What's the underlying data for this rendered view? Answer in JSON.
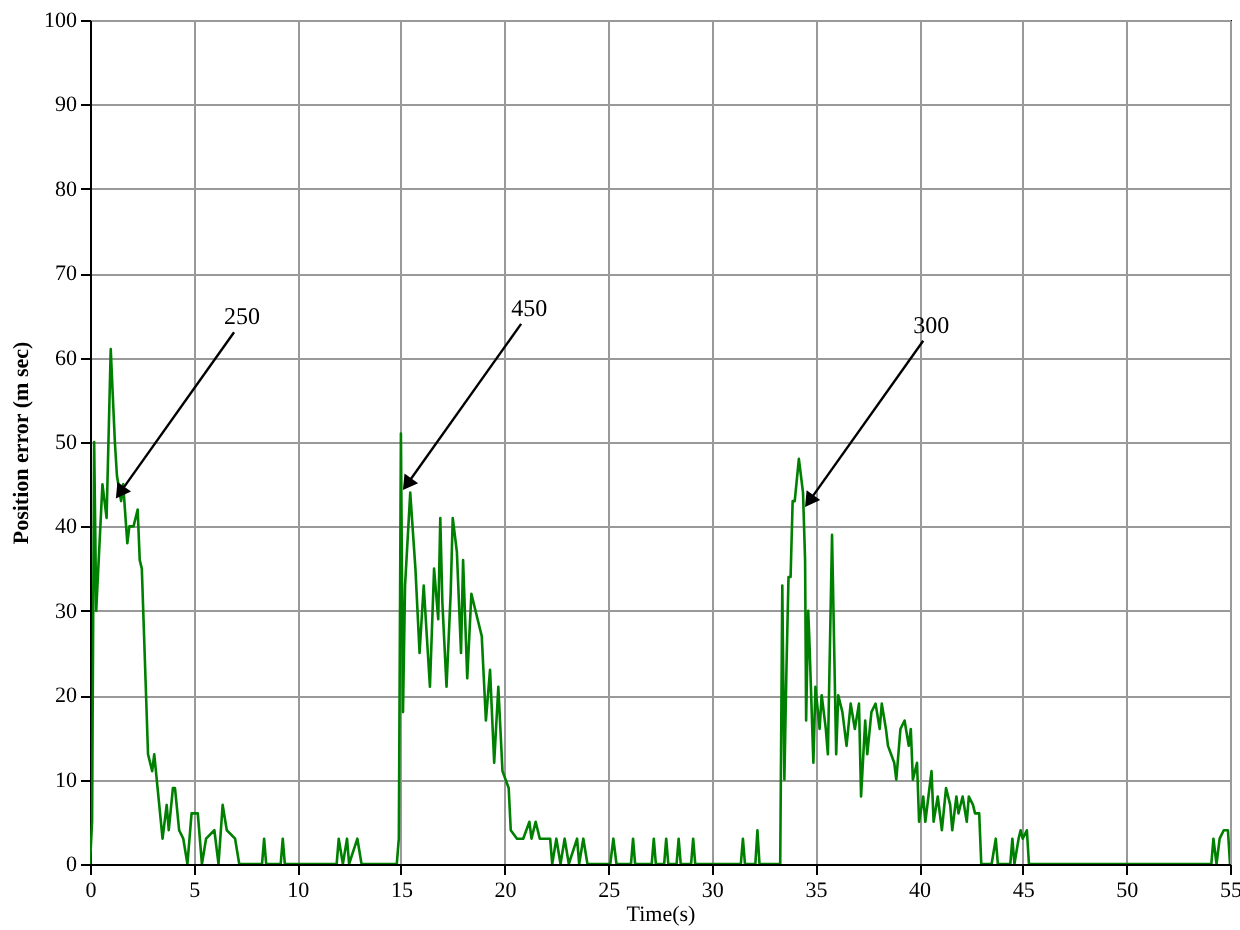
{
  "chart_data": {
    "type": "line",
    "xlabel": "Time(s)",
    "ylabel": "Position error (m sec)",
    "xlim": [
      0,
      55
    ],
    "ylim": [
      0,
      100
    ],
    "xticks": [
      0,
      5,
      10,
      15,
      20,
      25,
      30,
      35,
      40,
      45,
      50,
      55
    ],
    "yticks": [
      0,
      10,
      20,
      30,
      40,
      50,
      60,
      70,
      80,
      90,
      100
    ],
    "grid": true,
    "marker": "none",
    "line_style": "solid",
    "annotations": [
      {
        "text": "250",
        "x": 1.45,
        "y": 44
      },
      {
        "text": "450",
        "x": 15.3,
        "y": 45
      },
      {
        "text": "300",
        "x": 34.7,
        "y": 43
      }
    ],
    "series": [
      {
        "color": "#008000",
        "x": [
          0,
          0.1,
          0.2,
          0.3,
          0.5,
          0.6,
          0.8,
          1.0,
          1.2,
          1.3,
          1.5,
          1.6,
          1.8,
          1.9,
          2.1,
          2.3,
          2.4,
          2.5,
          2.8,
          3.0,
          3.1,
          3.3,
          3.5,
          3.7,
          3.8,
          4.0,
          4.1,
          4.3,
          4.5,
          4.7,
          4.9,
          5.2,
          5.4,
          5.6,
          6.0,
          6.2,
          6.4,
          6.6,
          7.0,
          7.2,
          8.3,
          8.4,
          8.5,
          9.2,
          9.3,
          9.4,
          11.9,
          12.0,
          12.2,
          12.4,
          12.5,
          12.9,
          13.1,
          14.8,
          14.9,
          15.0,
          15.1,
          15.2,
          15.45,
          15.7,
          15.9,
          16.1,
          16.4,
          16.6,
          16.8,
          16.9,
          17.0,
          17.2,
          17.4,
          17.5,
          17.7,
          17.9,
          18.0,
          18.2,
          18.4,
          18.7,
          18.9,
          19.1,
          19.3,
          19.5,
          19.7,
          19.9,
          20.2,
          20.3,
          20.6,
          20.9,
          21.2,
          21.3,
          21.5,
          21.7,
          22.2,
          22.3,
          22.5,
          22.7,
          22.9,
          23.1,
          23.5,
          23.6,
          23.8,
          24.0,
          25.1,
          25.25,
          25.4,
          26.1,
          26.2,
          26.3,
          27.1,
          27.2,
          27.3,
          27.7,
          27.8,
          27.9,
          28.3,
          28.4,
          28.5,
          29.0,
          29.1,
          29.2,
          31.4,
          31.5,
          31.6,
          32.1,
          32.2,
          32.3,
          33.3,
          33.4,
          33.5,
          33.6,
          33.7,
          33.8,
          33.9,
          34.0,
          34.2,
          34.4,
          34.5,
          34.55,
          34.65,
          34.7,
          34.9,
          35.0,
          35.2,
          35.3,
          35.5,
          35.6,
          35.8,
          36.0,
          36.1,
          36.3,
          36.5,
          36.7,
          36.9,
          37.1,
          37.2,
          37.4,
          37.5,
          37.7,
          37.9,
          38.1,
          38.2,
          38.4,
          38.5,
          38.8,
          38.9,
          39.1,
          39.3,
          39.5,
          39.6,
          39.7,
          39.9,
          40.0,
          40.2,
          40.3,
          40.45,
          40.6,
          40.7,
          40.9,
          41.1,
          41.3,
          41.5,
          41.6,
          41.8,
          41.9,
          42.1,
          42.3,
          42.4,
          42.6,
          42.7,
          42.9,
          43.0,
          43.5,
          43.7,
          43.8,
          44.4,
          44.5,
          44.6,
          44.8,
          44.9,
          45.0,
          45.2,
          45.3,
          54.1,
          54.2,
          54.35,
          54.5,
          54.7,
          54.9,
          55
        ],
        "values": [
          0,
          5,
          50,
          30,
          40,
          45,
          41,
          61,
          50,
          46,
          43,
          45,
          38,
          40,
          40,
          42,
          36,
          35,
          13,
          11,
          13,
          8,
          3,
          7,
          4,
          9,
          9,
          4,
          3,
          0,
          6,
          6,
          0,
          3,
          4,
          0,
          7,
          4,
          3,
          0,
          0,
          3,
          0,
          0,
          3,
          0,
          0,
          3,
          0,
          3,
          0,
          3,
          0,
          0,
          3,
          51,
          18,
          33,
          44,
          35,
          25,
          33,
          21,
          35,
          29,
          41,
          31,
          21,
          32,
          41,
          37,
          25,
          36,
          22,
          32,
          29,
          27,
          17,
          23,
          12,
          21,
          11,
          9,
          4,
          3,
          3,
          5,
          3,
          5,
          3,
          3,
          0,
          3,
          0,
          3,
          0,
          3,
          0,
          3,
          0,
          0,
          3,
          0,
          0,
          3,
          0,
          0,
          3,
          0,
          0,
          3,
          0,
          0,
          3,
          0,
          0,
          3,
          0,
          0,
          3,
          0,
          0,
          4,
          0,
          0,
          33,
          10,
          23,
          34,
          34,
          43,
          43,
          48,
          44,
          36,
          17,
          30,
          27,
          12,
          21,
          16,
          20,
          16,
          13,
          39,
          13,
          20,
          18,
          14,
          19,
          16,
          19,
          8,
          17,
          13,
          18,
          19,
          16,
          19,
          16,
          14,
          12,
          10,
          16,
          17,
          14,
          16,
          10,
          12,
          5,
          8,
          5,
          8,
          11,
          5,
          8,
          4,
          9,
          7,
          4,
          8,
          6,
          8,
          5,
          8,
          7,
          6,
          6,
          0,
          0,
          3,
          0,
          0,
          3,
          0,
          3,
          4,
          3,
          4,
          0,
          0,
          3,
          0,
          3,
          4,
          4,
          0
        ]
      }
    ]
  }
}
